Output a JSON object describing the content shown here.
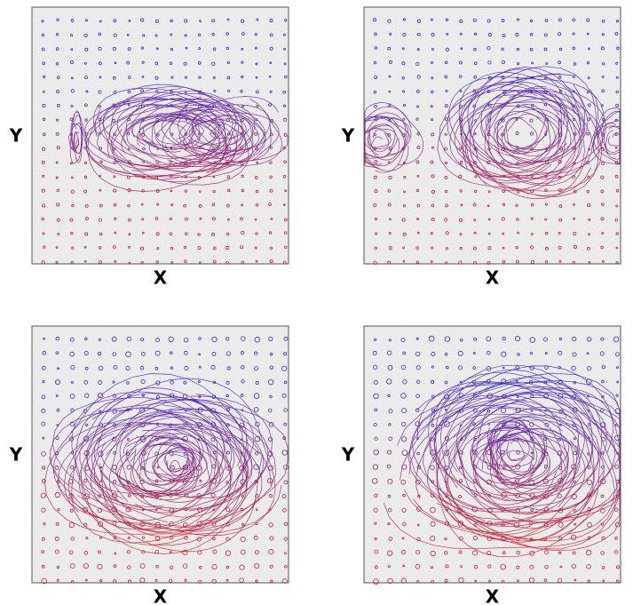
{
  "panels": [
    {
      "x_label": "X",
      "y_label": "Y"
    },
    {
      "x_label": "X",
      "y_label": "Y"
    },
    {
      "x_label": "X",
      "y_label": "Y"
    },
    {
      "x_label": "X",
      "y_label": "Y"
    }
  ]
}
